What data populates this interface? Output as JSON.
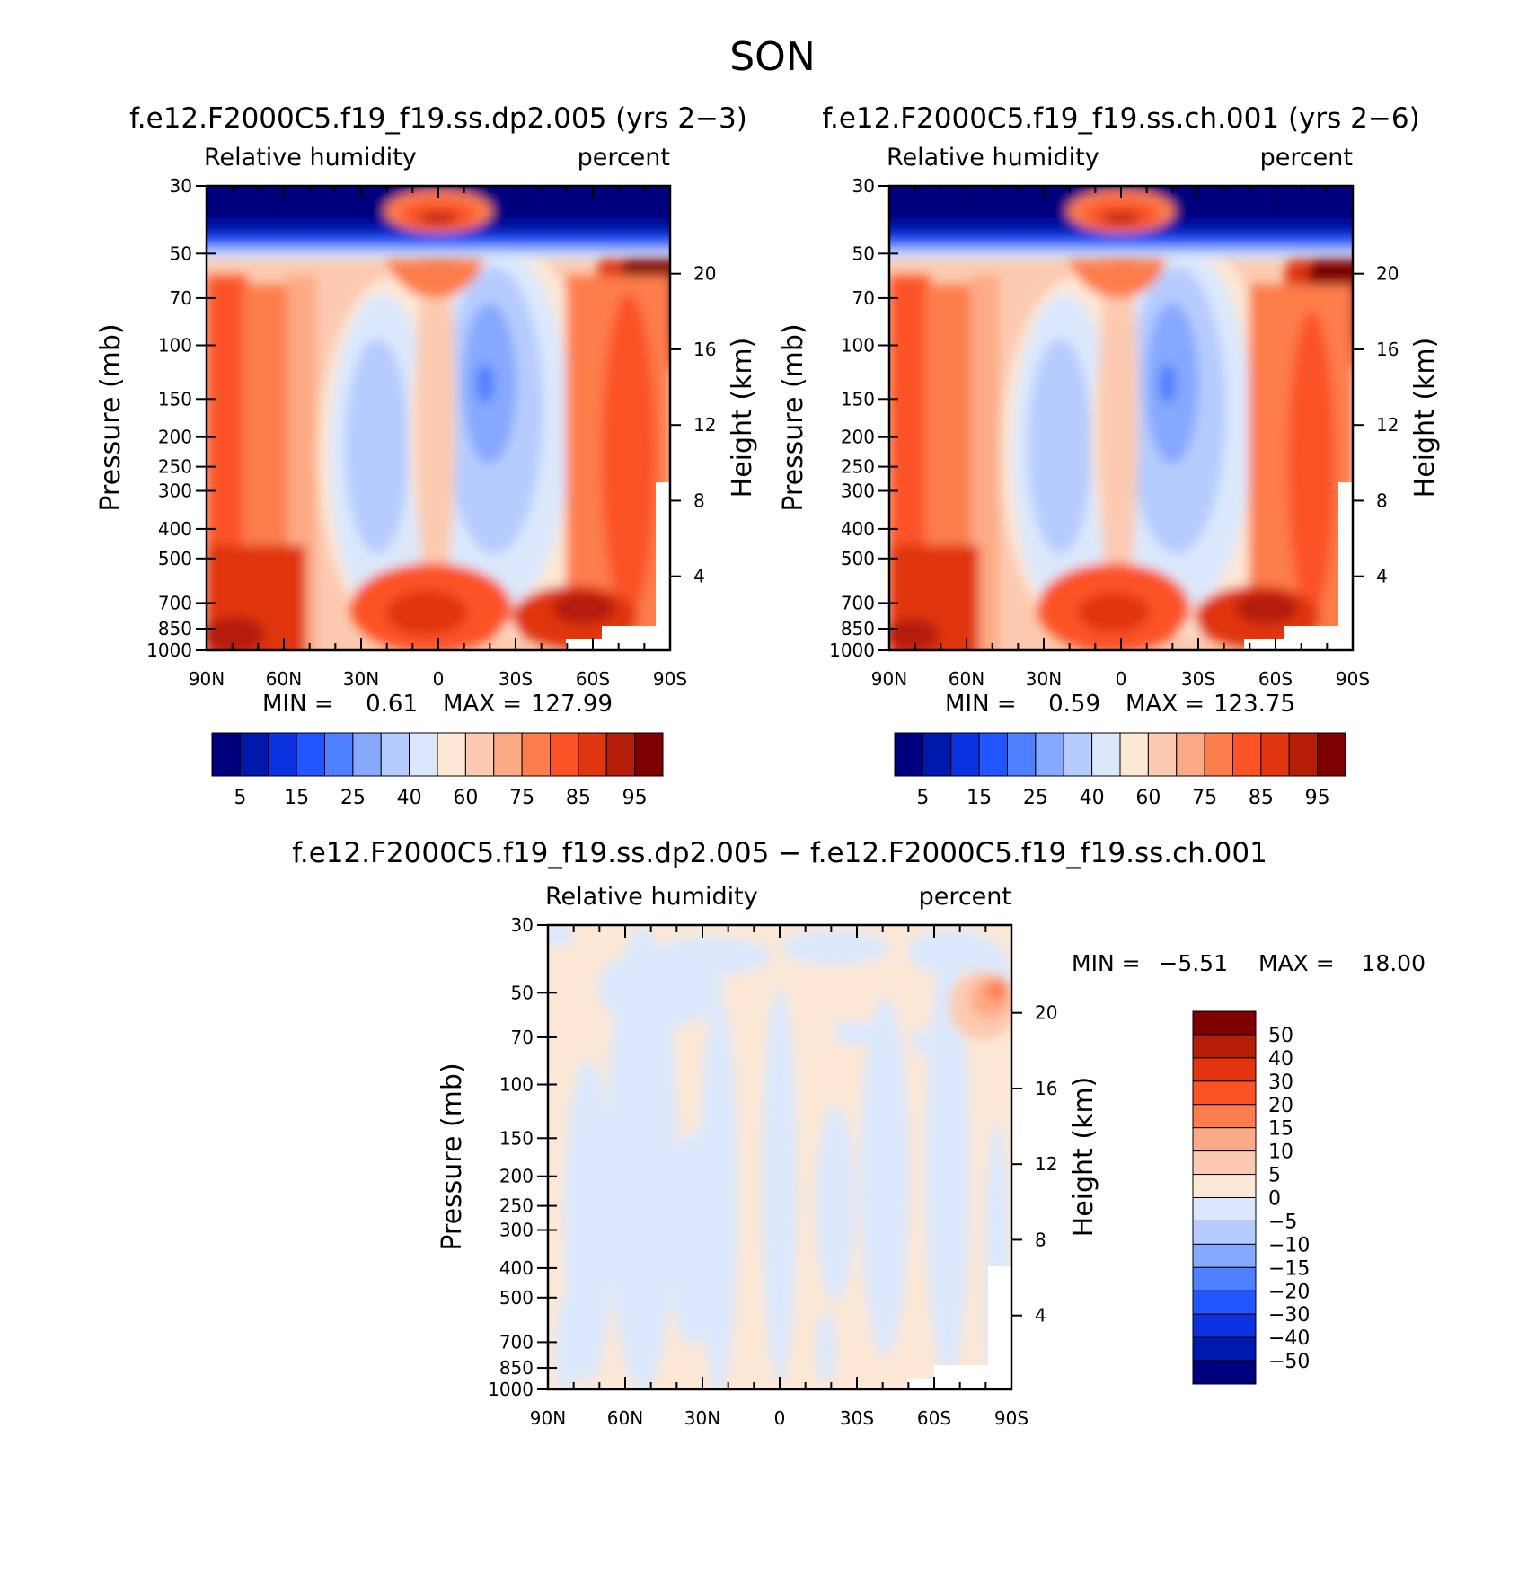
{
  "figure_title": "SON",
  "chart_data": [
    {
      "type": "contour",
      "title": "f.e12.F2000C5.f19_f19.ss.dp2.005 (yrs 2-3)",
      "variable_label": "Relative humidity",
      "units_label": "percent",
      "ylabel": "Pressure (mb)",
      "ylabel_right": "Height (km)",
      "x_ticks": [
        "90N",
        "60N",
        "30N",
        "0",
        "30S",
        "60S",
        "90S"
      ],
      "y_ticks": [
        "30",
        "50",
        "70",
        "100",
        "150",
        "200",
        "250",
        "300",
        "400",
        "500",
        "700",
        "850",
        "1000"
      ],
      "height_ticks": [
        "20",
        "16",
        "12",
        "8",
        "4"
      ],
      "min_label": "MIN =",
      "min_value": "0.61",
      "max_label": "MAX =",
      "max_value": "127.99",
      "colorbar_labels": [
        "5",
        "15",
        "25",
        "40",
        "60",
        "75",
        "85",
        "95"
      ],
      "colorbar_colors": [
        "#00007f",
        "#0019ad",
        "#0a32e0",
        "#2055ff",
        "#4f80ff",
        "#86a8ff",
        "#b6ccff",
        "#dbe8fc",
        "#fde8d6",
        "#fccab0",
        "#fcaa85",
        "#fd7d4c",
        "#fb5226",
        "#e03510",
        "#b41e08",
        "#7f0000"
      ]
    },
    {
      "type": "contour",
      "title": "f.e12.F2000C5.f19_f19.ss.ch.001 (yrs 2-6)",
      "variable_label": "Relative humidity",
      "units_label": "percent",
      "ylabel": "Pressure (mb)",
      "ylabel_right": "Height (km)",
      "x_ticks": [
        "90N",
        "60N",
        "30N",
        "0",
        "30S",
        "60S",
        "90S"
      ],
      "y_ticks": [
        "30",
        "50",
        "70",
        "100",
        "150",
        "200",
        "250",
        "300",
        "400",
        "500",
        "700",
        "850",
        "1000"
      ],
      "height_ticks": [
        "20",
        "16",
        "12",
        "8",
        "4"
      ],
      "min_label": "MIN =",
      "min_value": "0.59",
      "max_label": "MAX =",
      "max_value": "123.75",
      "colorbar_labels": [
        "5",
        "15",
        "25",
        "40",
        "60",
        "75",
        "85",
        "95"
      ],
      "colorbar_colors": [
        "#00007f",
        "#0019ad",
        "#0a32e0",
        "#2055ff",
        "#4f80ff",
        "#86a8ff",
        "#b6ccff",
        "#dbe8fc",
        "#fde8d6",
        "#fccab0",
        "#fcaa85",
        "#fd7d4c",
        "#fb5226",
        "#e03510",
        "#b41e08",
        "#7f0000"
      ]
    },
    {
      "type": "contour",
      "title": "f.e12.F2000C5.f19_f19.ss.dp2.005 - f.e12.F2000C5.f19_f19.ss.ch.001",
      "variable_label": "Relative humidity",
      "units_label": "percent",
      "ylabel": "Pressure (mb)",
      "ylabel_right": "Height (km)",
      "x_ticks": [
        "90N",
        "60N",
        "30N",
        "0",
        "30S",
        "60S",
        "90S"
      ],
      "y_ticks": [
        "30",
        "50",
        "70",
        "100",
        "150",
        "200",
        "250",
        "300",
        "400",
        "500",
        "700",
        "850",
        "1000"
      ],
      "height_ticks": [
        "20",
        "16",
        "12",
        "8",
        "4"
      ],
      "min_label": "MIN =",
      "min_value": "-5.51",
      "max_label": "MAX =",
      "max_value": "18.00",
      "colorbar_labels": [
        "50",
        "40",
        "30",
        "20",
        "15",
        "10",
        "5",
        "0",
        "-5",
        "-10",
        "-15",
        "-20",
        "-30",
        "-40",
        "-50"
      ],
      "colorbar_colors": [
        "#7f0000",
        "#b41e08",
        "#e03510",
        "#fb5226",
        "#fd7d4c",
        "#fcaa85",
        "#fccab0",
        "#fde8d6",
        "#dbe8fc",
        "#b6ccff",
        "#86a8ff",
        "#4f80ff",
        "#2055ff",
        "#0a32e0",
        "#0019ad",
        "#00007f"
      ]
    }
  ]
}
